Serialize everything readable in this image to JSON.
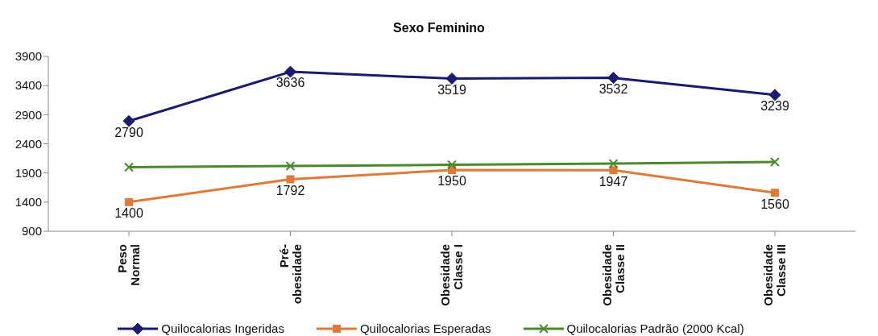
{
  "chart_data": {
    "type": "line",
    "title": "Sexo Feminino",
    "categories": [
      "Peso Normal",
      "Pré-obesidade",
      "Obesidade Classe I",
      "Obesidade Classe II",
      "Obesidade Classe III"
    ],
    "series": [
      {
        "name": "Quilocalorias Ingeridas",
        "color": "#1a1a6e",
        "marker": "diamond",
        "values": [
          2790,
          3636,
          3519,
          3532,
          3239
        ],
        "value_labels": [
          "2790",
          "3636",
          "3519",
          "3532",
          "3239"
        ]
      },
      {
        "name": "Quilocalorias Esperadas",
        "color": "#e07a3a",
        "marker": "square",
        "values": [
          1400,
          1792,
          1950,
          1947,
          1560
        ],
        "value_labels": [
          "1400",
          "1792",
          "1950",
          "1947",
          "1560"
        ]
      },
      {
        "name": "Quilocalorias Padrão (2000 Kcal)",
        "color": "#4a8a2a",
        "marker": "cross",
        "values": [
          2000,
          2020,
          2040,
          2060,
          2090
        ]
      }
    ],
    "ylim": [
      900,
      3900
    ],
    "yticks": [
      900,
      1400,
      1900,
      2400,
      2900,
      3400,
      3900
    ],
    "legend": "bottom"
  }
}
